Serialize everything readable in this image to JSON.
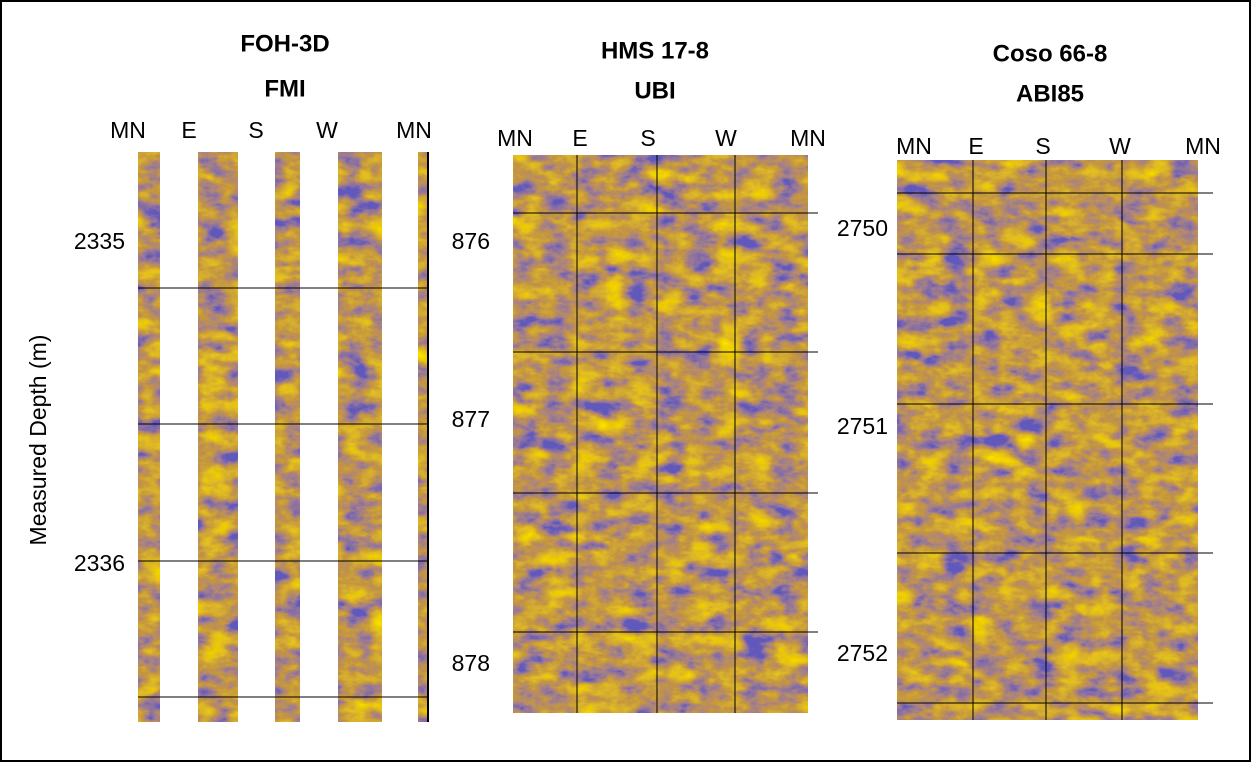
{
  "y_axis_label": "Measured Depth (m)",
  "panels": [
    {
      "title": [
        "FOH-3D",
        "FMI"
      ],
      "azimuths": [
        "MN",
        "E",
        "S",
        "W",
        "MN"
      ],
      "depths": [
        "2335",
        "2336"
      ]
    },
    {
      "title": [
        "HMS 17-8",
        "UBI"
      ],
      "azimuths": [
        "MN",
        "E",
        "S",
        "W",
        "MN"
      ],
      "depths": [
        "876",
        "877",
        "878"
      ]
    },
    {
      "title": [
        "Coso 66-8",
        "ABI85"
      ],
      "azimuths": [
        "MN",
        "E",
        "S",
        "W",
        "MN"
      ],
      "depths": [
        "2750",
        "2751",
        "2752"
      ]
    }
  ]
}
